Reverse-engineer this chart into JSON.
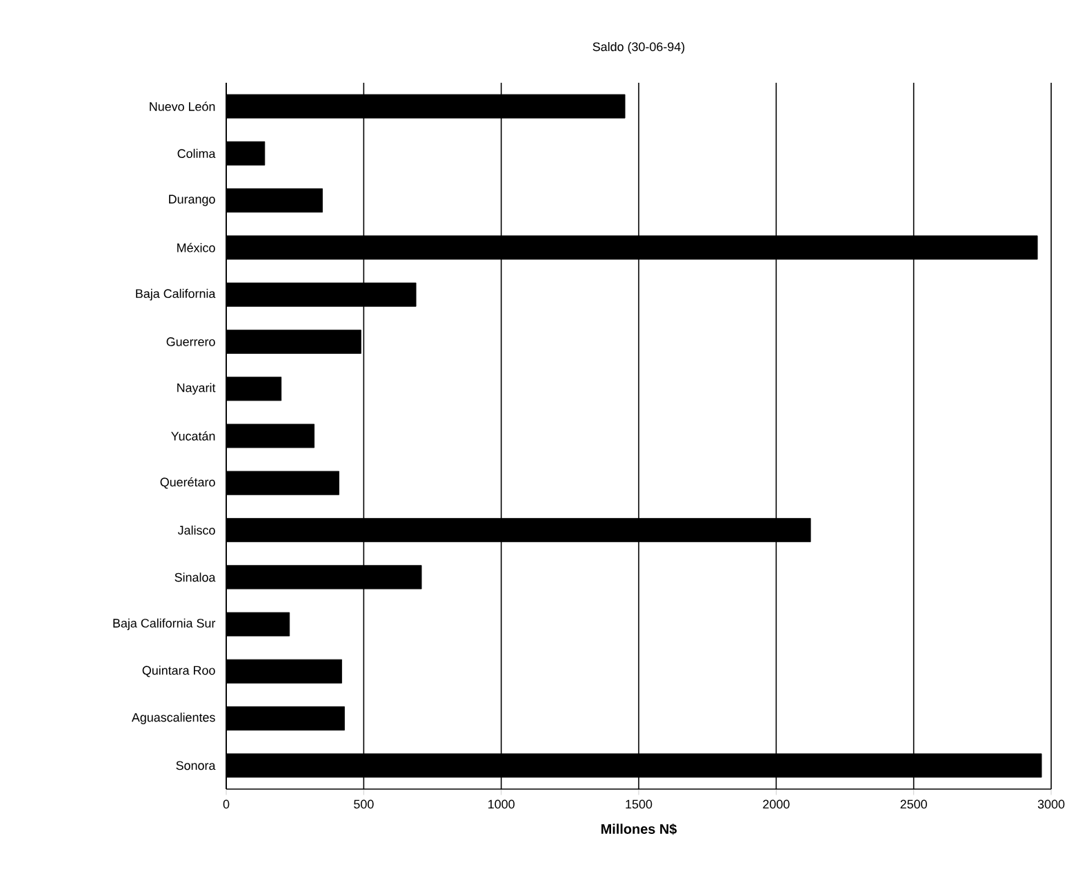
{
  "chart_data": {
    "type": "bar",
    "orientation": "horizontal",
    "title": "Saldo (30-06-94)",
    "xlabel": "**Millones N$**",
    "categories": [
      "Nuevo León",
      "Colima",
      "Durango",
      "México",
      "Baja California",
      "Guerrero",
      "Nayarit",
      "Yucatán",
      "Querétaro",
      "Jalisco",
      "Sinaloa",
      "Baja California Sur",
      "Quintara Roo",
      "Aguascalientes",
      "Sonora"
    ],
    "values": [
      1450,
      140,
      350,
      2950,
      690,
      490,
      200,
      320,
      410,
      2125,
      710,
      230,
      420,
      430,
      2965
    ],
    "color": "#000000",
    "xlim": [
      0,
      3000
    ],
    "xticks": [
      0,
      500,
      1000,
      1500,
      2000,
      2500,
      3000
    ],
    "grid": "x"
  }
}
